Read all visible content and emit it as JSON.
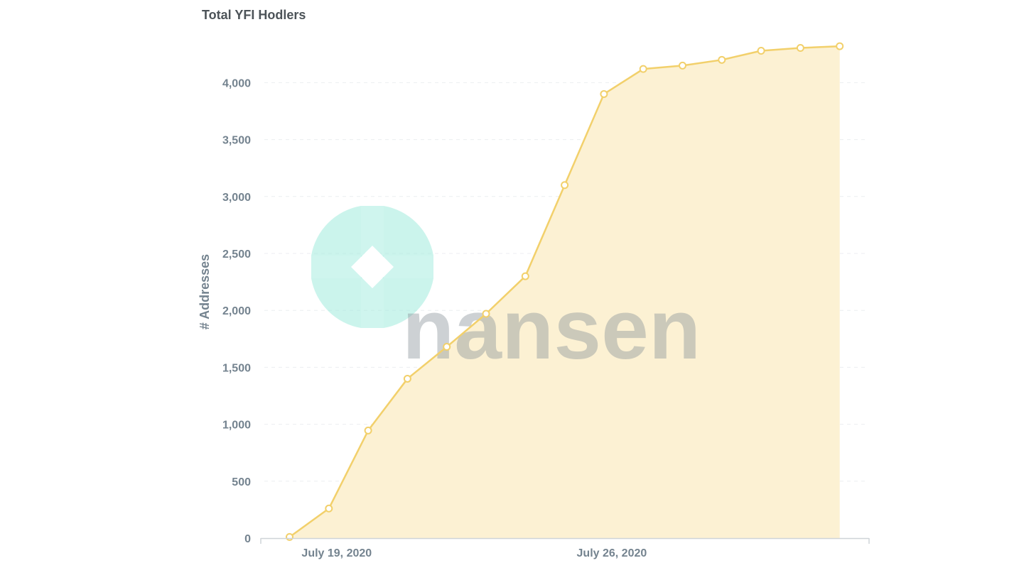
{
  "chart_data": {
    "type": "area",
    "title": "Total YFI Hodlers",
    "xlabel": "",
    "ylabel": "# Addresses",
    "x": [
      "2020-07-18",
      "2020-07-19",
      "2020-07-20",
      "2020-07-21",
      "2020-07-22",
      "2020-07-23",
      "2020-07-24",
      "2020-07-25",
      "2020-07-26",
      "2020-07-27",
      "2020-07-28",
      "2020-07-29",
      "2020-07-30",
      "2020-07-31",
      "2020-08-01"
    ],
    "series": [
      {
        "values": [
          10,
          260,
          945,
          1400,
          1680,
          1970,
          2300,
          3100,
          3900,
          4120,
          4150,
          4200,
          4280,
          4305,
          4320
        ]
      }
    ],
    "y_ticks": [
      0,
      500,
      1000,
      1500,
      2000,
      2500,
      3000,
      3500,
      4000
    ],
    "y_tick_labels": [
      "0",
      "500",
      "1,000",
      "1,500",
      "2,000",
      "2,500",
      "3,000",
      "3,500",
      "4,000"
    ],
    "x_tick_labels": [
      {
        "x": "2020-07-19",
        "label": "July 19, 2020"
      },
      {
        "x": "2020-07-26",
        "label": "July 26, 2020"
      }
    ],
    "ylim": [
      0,
      4400
    ],
    "grid": true,
    "legend": "none",
    "colors": {
      "line": "#f2d06b",
      "fill": "#fcf1d3",
      "point_fill": "#ffffff"
    }
  },
  "watermark": {
    "text": "nansen"
  }
}
